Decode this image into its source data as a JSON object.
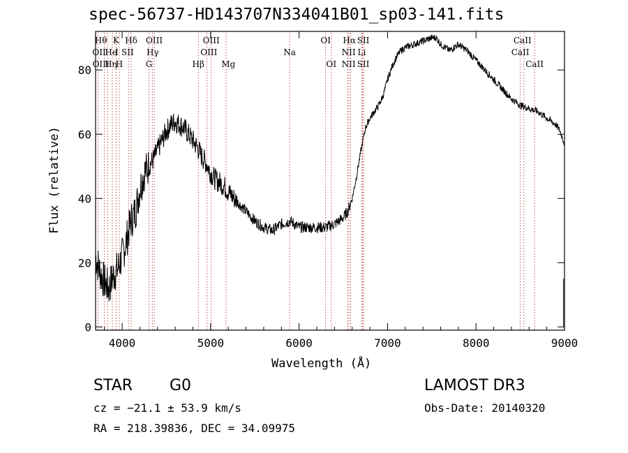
{
  "chart_data": {
    "type": "line",
    "title": "spec-56737-HD143707N334041B01_sp03-141.fits",
    "xlabel": "Wavelength (Å)",
    "ylabel": "Flux (relative)",
    "xlim": [
      3700,
      9000
    ],
    "ylim": [
      -1,
      92
    ],
    "xticks": [
      4000,
      5000,
      6000,
      7000,
      8000,
      9000
    ],
    "yticks": [
      0,
      20,
      40,
      60,
      80
    ],
    "series": [
      {
        "name": "flux",
        "x": [
          3700,
          3750,
          3800,
          3850,
          3900,
          3950,
          4000,
          4050,
          4100,
          4150,
          4200,
          4250,
          4300,
          4350,
          4400,
          4450,
          4500,
          4550,
          4600,
          4650,
          4700,
          4750,
          4800,
          4850,
          4900,
          4950,
          5000,
          5050,
          5100,
          5150,
          5200,
          5300,
          5400,
          5500,
          5600,
          5700,
          5800,
          5900,
          6000,
          6100,
          6200,
          6300,
          6400,
          6500,
          6550,
          6600,
          6650,
          6700,
          6750,
          6800,
          6850,
          6900,
          6950,
          7000,
          7050,
          7100,
          7150,
          7200,
          7300,
          7400,
          7500,
          7550,
          7600,
          7700,
          7800,
          7900,
          8000,
          8100,
          8200,
          8300,
          8400,
          8500,
          8600,
          8700,
          8800,
          8900,
          8950,
          9000
        ],
        "y": [
          22,
          17,
          14,
          12,
          16,
          18,
          22,
          27,
          33,
          36,
          43,
          48,
          50,
          52,
          55,
          58,
          61,
          63,
          64,
          63,
          62,
          60,
          58,
          56,
          53,
          51,
          48,
          46,
          45,
          44,
          42,
          39,
          36,
          33,
          31,
          30,
          32,
          33,
          31,
          31,
          31,
          31,
          32,
          34,
          36,
          40,
          47,
          55,
          62,
          65,
          67,
          69,
          72,
          77,
          81,
          84,
          86,
          87,
          88,
          89,
          90,
          90,
          88,
          86,
          88,
          86,
          83,
          80,
          77,
          74,
          71,
          69,
          68,
          67,
          65,
          63,
          61,
          57
        ]
      }
    ],
    "lines": [
      {
        "name": "Hθ",
        "wave": 3798
      },
      {
        "name": "OII",
        "wave": 3727
      },
      {
        "name": "Hη",
        "wave": 3835
      },
      {
        "name": "HeI",
        "wave": 3889
      },
      {
        "name": "K",
        "wave": 3934
      },
      {
        "name": "H",
        "wave": 3968
      },
      {
        "name": "SII",
        "wave": 4072
      },
      {
        "name": "Hδ",
        "wave": 4102
      },
      {
        "name": "G",
        "wave": 4304
      },
      {
        "name": "Hγ",
        "wave": 4341
      },
      {
        "name": "OIII",
        "wave": 4363
      },
      {
        "name": "Hβ",
        "wave": 4861
      },
      {
        "name": "OIII",
        "wave": 4959
      },
      {
        "name": "OIII",
        "wave": 5007
      },
      {
        "name": "Mg",
        "wave": 5175
      },
      {
        "name": "Na",
        "wave": 5893
      },
      {
        "name": "OI",
        "wave": 6300
      },
      {
        "name": "OI",
        "wave": 6364
      },
      {
        "name": "NII",
        "wave": 6548
      },
      {
        "name": "Hα",
        "wave": 6563
      },
      {
        "name": "NII",
        "wave": 6583
      },
      {
        "name": "Li",
        "wave": 6708
      },
      {
        "name": "SII",
        "wave": 6716
      },
      {
        "name": "SII",
        "wave": 6731
      },
      {
        "name": "CaII",
        "wave": 8498
      },
      {
        "name": "CaII",
        "wave": 8542
      },
      {
        "name": "CaII",
        "wave": 8662
      }
    ],
    "line_labels": [
      {
        "text": "Hθ",
        "wave": 3760,
        "row": 0
      },
      {
        "text": "OII",
        "wave": 3740,
        "row": 1
      },
      {
        "text": "OIII",
        "wave": 3760,
        "row": 2
      },
      {
        "text": "He",
        "wave": 3875,
        "row": 1
      },
      {
        "text": "Hη",
        "wave": 3872,
        "row": 2
      },
      {
        "text": "K",
        "wave": 3932,
        "row": 0
      },
      {
        "text": "I",
        "wave": 3940,
        "row": 1
      },
      {
        "text": "H",
        "wave": 3968,
        "row": 2
      },
      {
        "text": "Hδ",
        "wave": 4102,
        "row": 0
      },
      {
        "text": "SII",
        "wave": 4062,
        "row": 1
      },
      {
        "text": "OIII",
        "wave": 4363,
        "row": 0
      },
      {
        "text": "Hγ",
        "wave": 4345,
        "row": 1
      },
      {
        "text": "G",
        "wave": 4304,
        "row": 2
      },
      {
        "text": "Hβ",
        "wave": 4861,
        "row": 2
      },
      {
        "text": "OIII",
        "wave": 5007,
        "row": 0
      },
      {
        "text": "OIII",
        "wave": 4980,
        "row": 1
      },
      {
        "text": "Mg",
        "wave": 5200,
        "row": 2
      },
      {
        "text": "Na",
        "wave": 5893,
        "row": 1
      },
      {
        "text": "OI",
        "wave": 6300,
        "row": 0
      },
      {
        "text": "OI",
        "wave": 6364,
        "row": 2
      },
      {
        "text": "Hα",
        "wave": 6568,
        "row": 0
      },
      {
        "text": "SII",
        "wave": 6725,
        "row": 0
      },
      {
        "text": "NII",
        "wave": 6560,
        "row": 1
      },
      {
        "text": "Li",
        "wave": 6708,
        "row": 1
      },
      {
        "text": "NII",
        "wave": 6560,
        "row": 2
      },
      {
        "text": "SII",
        "wave": 6725,
        "row": 2
      },
      {
        "text": "CaII",
        "wave": 8525,
        "row": 0
      },
      {
        "text": "CaII",
        "wave": 8500,
        "row": 1
      },
      {
        "text": "CaII",
        "wave": 8662,
        "row": 2
      }
    ]
  },
  "info": {
    "class": "STAR",
    "subclass": "G0",
    "survey": "LAMOST DR3",
    "cz": "cz = −21.1 ± 53.9 km/s",
    "obs_date": "Obs-Date: 20140320",
    "coords": "RA = 218.39836, DEC =  34.09975"
  },
  "colors": {
    "line_marker": "#b22222",
    "axis": "#000000",
    "spectrum": "#000000"
  }
}
